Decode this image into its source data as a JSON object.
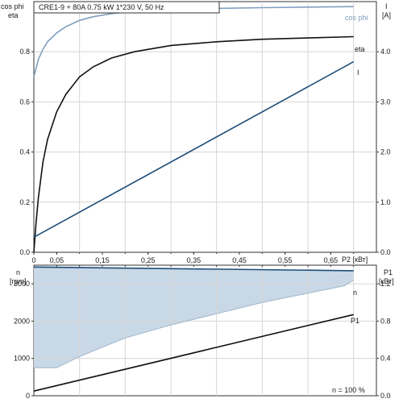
{
  "chart_data": [
    {
      "type": "line",
      "title": "CRE1-9 + 80A   0.75 kW   1*230 V, 50 Hz",
      "left_axis": {
        "label_line1": "cos phi",
        "label_line2": "eta",
        "ylim": [
          0,
          1.0
        ],
        "ticks": [
          "0.0",
          "0.2",
          "0.4",
          "0.6",
          "0.8"
        ]
      },
      "right_axis": {
        "label_line1": "I",
        "label_line2": "[A]",
        "ylim": [
          0,
          5.0
        ],
        "ticks": [
          "0.0",
          "1.0",
          "2.0",
          "3.0",
          "4.0"
        ]
      },
      "x_axis": {
        "label": "P2 [кВт]",
        "xlim": [
          0,
          0.75
        ],
        "ticks": [
          "0",
          "0,05",
          "0,15",
          "0,25",
          "0,35",
          "0,45",
          "0,55",
          "0,65"
        ]
      },
      "grid": true,
      "series": [
        {
          "name": "cos phi",
          "axis": "left",
          "color": "#7f9fbf",
          "x": [
            0.0,
            0.01,
            0.02,
            0.03,
            0.05,
            0.07,
            0.1,
            0.13,
            0.17,
            0.22,
            0.3,
            0.4,
            0.5,
            0.6,
            0.7
          ],
          "y": [
            0.7,
            0.77,
            0.81,
            0.84,
            0.875,
            0.9,
            0.925,
            0.94,
            0.952,
            0.962,
            0.968,
            0.973,
            0.976,
            0.978,
            0.98
          ]
        },
        {
          "name": "eta",
          "axis": "left",
          "color": "#111111",
          "x": [
            0.0,
            0.005,
            0.01,
            0.02,
            0.03,
            0.05,
            0.07,
            0.1,
            0.13,
            0.17,
            0.22,
            0.3,
            0.4,
            0.5,
            0.6,
            0.7
          ],
          "y": [
            0.0,
            0.12,
            0.22,
            0.36,
            0.45,
            0.56,
            0.63,
            0.7,
            0.74,
            0.775,
            0.8,
            0.825,
            0.84,
            0.85,
            0.855,
            0.86
          ]
        },
        {
          "name": "I",
          "axis": "right",
          "color": "#1d4e79",
          "x": [
            0.0,
            0.7
          ],
          "y": [
            0.3,
            3.8
          ]
        }
      ]
    },
    {
      "type": "area",
      "left_axis": {
        "label_line1": "n",
        "label_line2": "[rpm]",
        "ylim": [
          0,
          3500
        ],
        "ticks": [
          "0",
          "1000",
          "2000",
          "3000"
        ]
      },
      "right_axis": {
        "label_line1": "P1",
        "label_line2": "[кВт]",
        "ylim": [
          0,
          1.4
        ],
        "ticks": [
          "0.0",
          "0.4",
          "0.8",
          "1.2"
        ]
      },
      "grid": true,
      "note": "n = 100 %",
      "series": [
        {
          "name": "n",
          "axis": "left",
          "color": "#1d4e79",
          "fill": "#c9d8e6",
          "x": [
            0.0,
            0.7
          ],
          "y": [
            3450,
            3350
          ],
          "lower_x": [
            0.0,
            0.05,
            0.1,
            0.15,
            0.2,
            0.3,
            0.4,
            0.5,
            0.6,
            0.68,
            0.7
          ],
          "lower_y": [
            750,
            750,
            1050,
            1300,
            1550,
            1900,
            2200,
            2500,
            2750,
            2950,
            3100
          ]
        },
        {
          "name": "P1",
          "axis": "right",
          "color": "#111111",
          "x": [
            0.0,
            0.7
          ],
          "y": [
            0.05,
            0.87
          ]
        }
      ]
    }
  ]
}
